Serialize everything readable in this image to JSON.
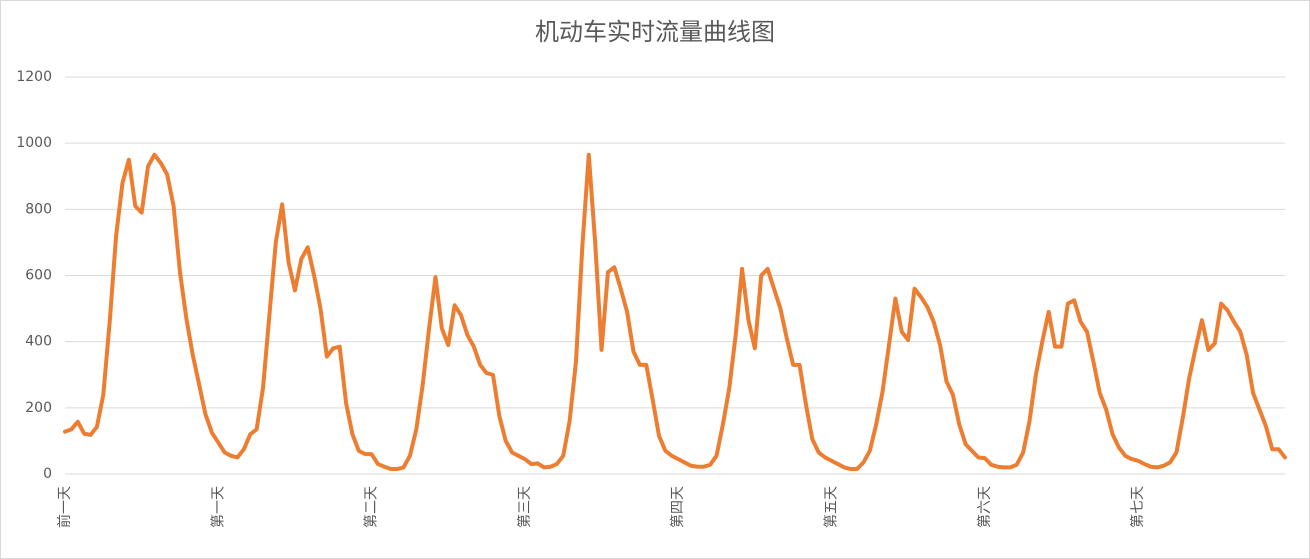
{
  "chart_data": {
    "type": "line",
    "title": "机动车实时流量曲线图",
    "categories": [
      "前一天",
      null,
      null,
      null,
      null,
      null,
      null,
      null,
      null,
      null,
      null,
      null,
      null,
      null,
      null,
      null,
      null,
      null,
      null,
      null,
      null,
      null,
      null,
      null,
      "第一天",
      null,
      null,
      null,
      null,
      null,
      null,
      null,
      null,
      null,
      null,
      null,
      null,
      null,
      null,
      null,
      null,
      null,
      null,
      null,
      null,
      null,
      null,
      null,
      "第二天",
      null,
      null,
      null,
      null,
      null,
      null,
      null,
      null,
      null,
      null,
      null,
      null,
      null,
      null,
      null,
      null,
      null,
      null,
      null,
      null,
      null,
      null,
      null,
      "第三天",
      null,
      null,
      null,
      null,
      null,
      null,
      null,
      null,
      null,
      null,
      null,
      null,
      null,
      null,
      null,
      null,
      null,
      null,
      null,
      null,
      null,
      null,
      null,
      "第四天",
      null,
      null,
      null,
      null,
      null,
      null,
      null,
      null,
      null,
      null,
      null,
      null,
      null,
      null,
      null,
      null,
      null,
      null,
      null,
      null,
      null,
      null,
      null,
      "第五天",
      null,
      null,
      null,
      null,
      null,
      null,
      null,
      null,
      null,
      null,
      null,
      null,
      null,
      null,
      null,
      null,
      null,
      null,
      null,
      null,
      null,
      null,
      null,
      "第六天",
      null,
      null,
      null,
      null,
      null,
      null,
      null,
      null,
      null,
      null,
      null,
      null,
      null,
      null,
      null,
      null,
      null,
      null,
      null,
      null,
      null,
      null,
      null,
      "第七天",
      null,
      null,
      null,
      null,
      null,
      null,
      null,
      null,
      null,
      null,
      null,
      null,
      null,
      null,
      null,
      null,
      null,
      null,
      null,
      null,
      null,
      null,
      null
    ],
    "series": [
      {
        "color": "#ed7d31",
        "values": [
          128,
          135,
          158,
          122,
          118,
          143,
          240,
          460,
          720,
          880,
          950,
          810,
          790,
          930,
          965,
          940,
          905,
          810,
          610,
          470,
          360,
          270,
          180,
          125,
          95,
          65,
          55,
          50,
          75,
          120,
          135,
          260,
          480,
          700,
          815,
          640,
          555,
          650,
          685,
          600,
          500,
          355,
          380,
          385,
          215,
          120,
          70,
          60,
          60,
          30,
          22,
          15,
          15,
          20,
          55,
          135,
          270,
          440,
          595,
          440,
          390,
          510,
          480,
          420,
          385,
          330,
          305,
          300,
          175,
          100,
          65,
          55,
          45,
          30,
          32,
          20,
          22,
          30,
          55,
          160,
          340,
          690,
          965,
          700,
          375,
          610,
          625,
          560,
          490,
          370,
          330,
          330,
          225,
          115,
          70,
          55,
          45,
          35,
          25,
          22,
          22,
          28,
          55,
          150,
          260,
          420,
          620,
          465,
          380,
          600,
          620,
          560,
          500,
          410,
          330,
          330,
          210,
          105,
          65,
          50,
          40,
          30,
          20,
          15,
          15,
          35,
          70,
          150,
          250,
          390,
          530,
          430,
          405,
          560,
          535,
          505,
          460,
          390,
          280,
          240,
          150,
          90,
          70,
          50,
          48,
          28,
          22,
          20,
          20,
          28,
          65,
          160,
          300,
          400,
          490,
          385,
          385,
          515,
          525,
          460,
          430,
          340,
          245,
          195,
          120,
          80,
          55,
          45,
          40,
          30,
          22,
          20,
          25,
          35,
          65,
          170,
          290,
          380,
          465,
          375,
          395,
          515,
          495,
          460,
          430,
          360,
          245,
          195,
          145,
          75,
          75,
          50
        ]
      }
    ],
    "ylim": [
      0,
      1200
    ],
    "yticks": [
      0,
      200,
      400,
      600,
      800,
      1000,
      1200
    ],
    "grid": true
  }
}
